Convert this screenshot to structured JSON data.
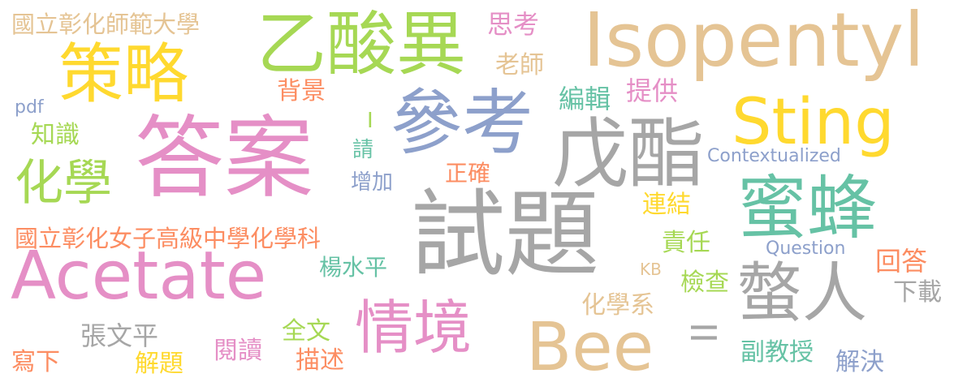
{
  "words": [
    {
      "text": "答案",
      "color": "#e58fc6"
    },
    {
      "text": "試題",
      "color": "#a6a6a6"
    },
    {
      "text": "參考",
      "color": "#8da0cb"
    },
    {
      "text": "戊酯",
      "color": "#a6a6a6"
    },
    {
      "text": "乙酸異",
      "color": "#a6d854"
    },
    {
      "text": "Isopentyl",
      "color": "#e5c494"
    },
    {
      "text": "Sting",
      "color": "#ffd92f"
    },
    {
      "text": "策略",
      "color": "#ffd92f"
    },
    {
      "text": "蜜蜂",
      "color": "#66c2a5"
    },
    {
      "text": "Acetate",
      "color": "#e58fc6"
    },
    {
      "text": "Bee",
      "color": "#e5c494"
    },
    {
      "text": "情境",
      "color": "#e58fc6"
    },
    {
      "text": "螫人",
      "color": "#a6a6a6"
    },
    {
      "text": "化學",
      "color": "#a6d854"
    },
    {
      "text": "國立彰化師範大學",
      "color": "#e5c494"
    },
    {
      "text": "國立彰化女子高級中學化學科",
      "color": "#fc8d62"
    },
    {
      "text": "思考",
      "color": "#e58fc6"
    },
    {
      "text": "老師",
      "color": "#e5c494"
    },
    {
      "text": "背景",
      "color": "#fc8d62"
    },
    {
      "text": "pdf",
      "color": "#8da0cb"
    },
    {
      "text": "知識",
      "color": "#a6d854"
    },
    {
      "text": "編輯",
      "color": "#66c2a5"
    },
    {
      "text": "提供",
      "color": "#e58fc6"
    },
    {
      "text": "I",
      "color": "#a6d854"
    },
    {
      "text": "請",
      "color": "#66c2a5"
    },
    {
      "text": "增加",
      "color": "#8da0cb"
    },
    {
      "text": "正確",
      "color": "#fc8d62"
    },
    {
      "text": "Contextualized",
      "color": "#8da0cb"
    },
    {
      "text": "連結",
      "color": "#ffd92f"
    },
    {
      "text": "責任",
      "color": "#a6d854"
    },
    {
      "text": "Question",
      "color": "#8da0cb"
    },
    {
      "text": "回答",
      "color": "#fc8d62"
    },
    {
      "text": "楊水平",
      "color": "#66c2a5"
    },
    {
      "text": "KB",
      "color": "#e5c494"
    },
    {
      "text": "檢查",
      "color": "#a6d854"
    },
    {
      "text": "下載",
      "color": "#a6a6a6"
    },
    {
      "text": "化學系",
      "color": "#e5c494"
    },
    {
      "text": "張文平",
      "color": "#a6a6a6"
    },
    {
      "text": "全文",
      "color": "#a6d854"
    },
    {
      "text": "II",
      "color": "#a6a6a6"
    },
    {
      "text": "寫下",
      "color": "#fc8d62"
    },
    {
      "text": "解題",
      "color": "#ffd92f"
    },
    {
      "text": "閱讀",
      "color": "#e58fc6"
    },
    {
      "text": "描述",
      "color": "#fc8d62"
    },
    {
      "text": "副教授",
      "color": "#66c2a5"
    },
    {
      "text": "解決",
      "color": "#8da0cb"
    }
  ]
}
